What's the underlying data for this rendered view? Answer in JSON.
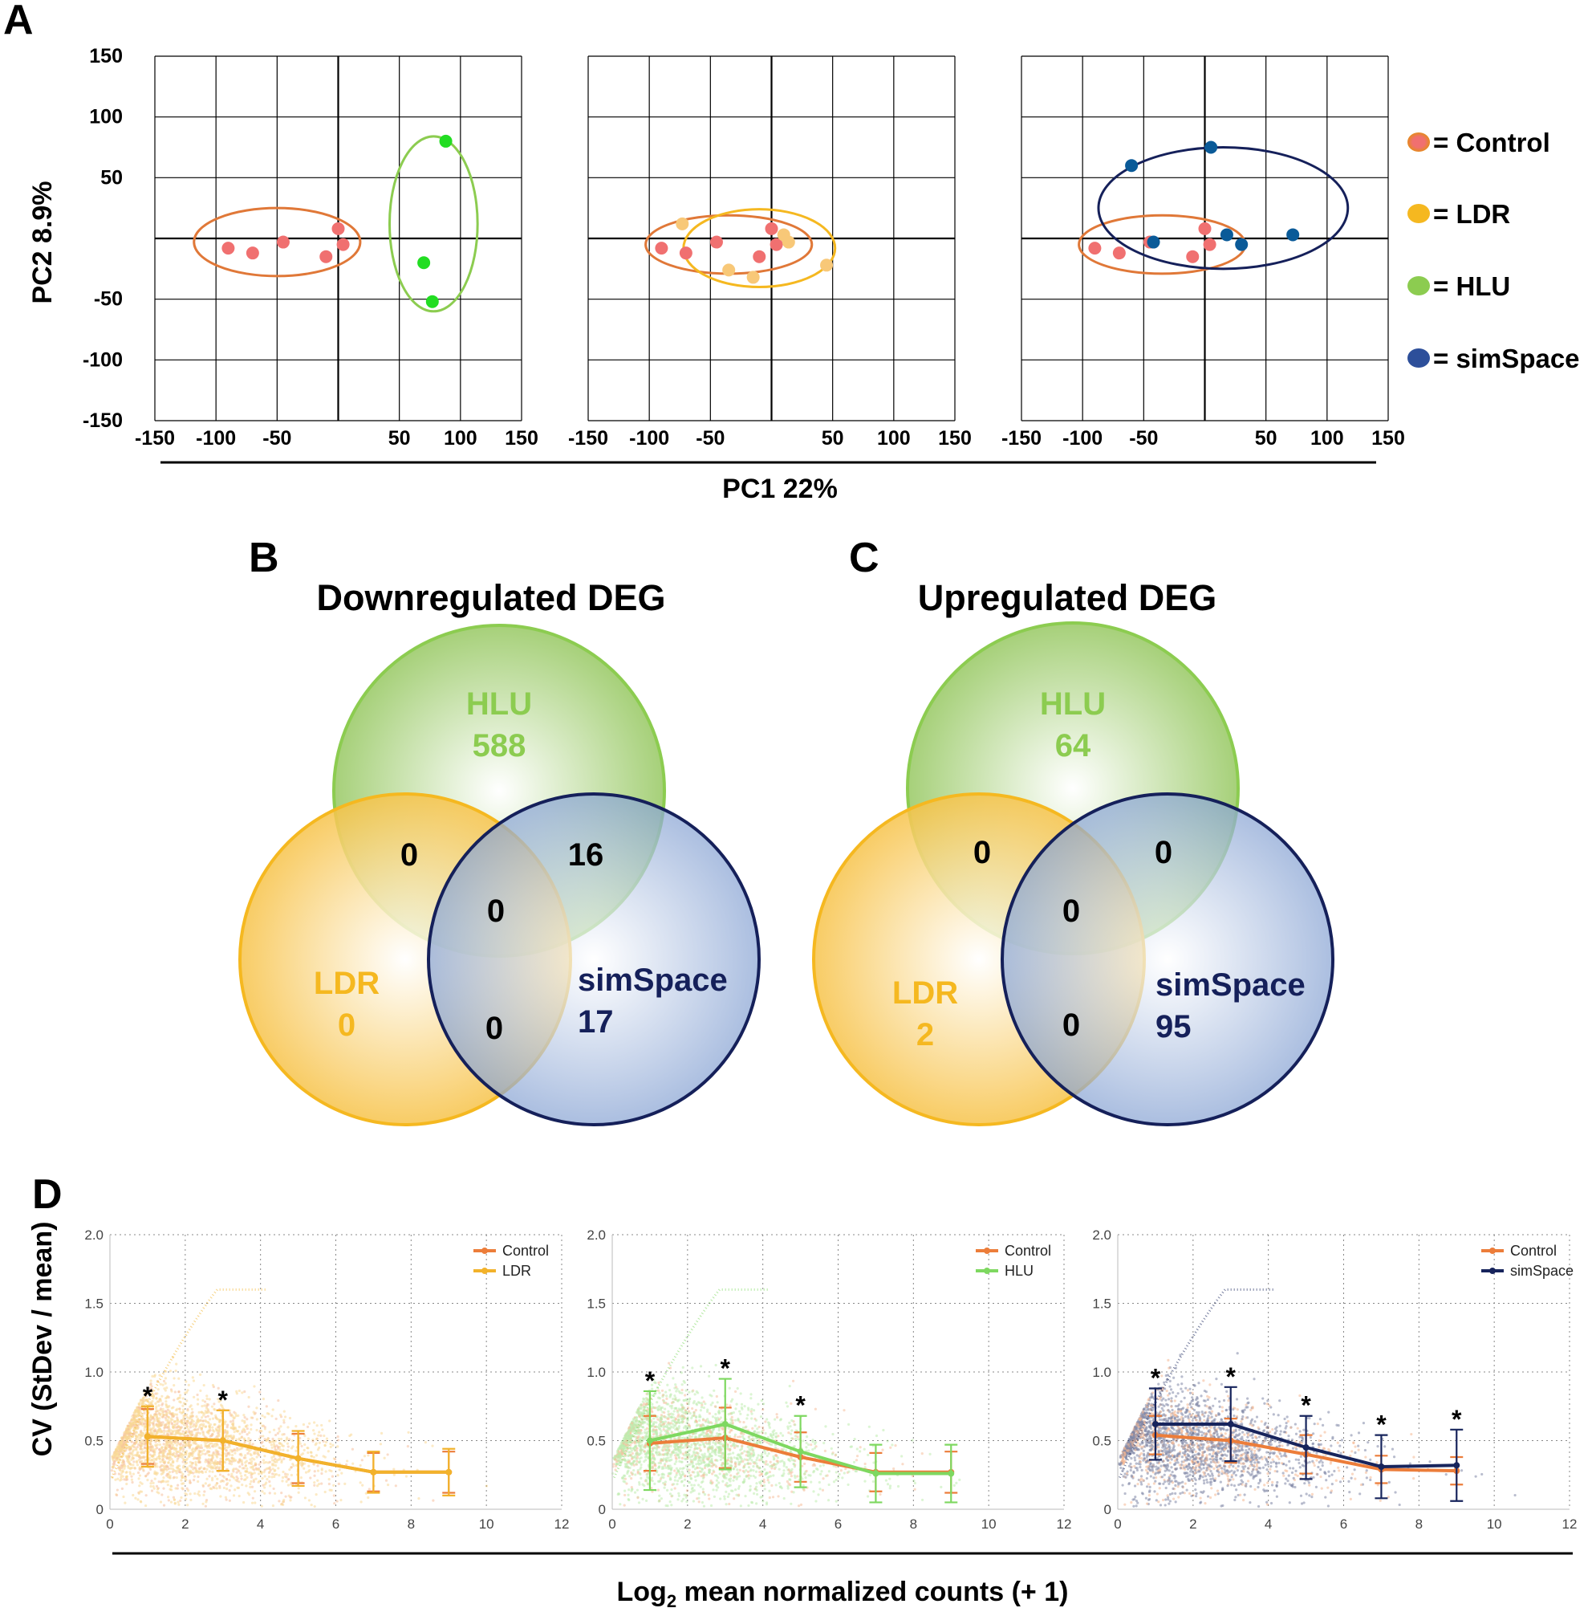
{
  "colors": {
    "control_point": "#f07070",
    "control_ellipse": "#e07838",
    "ldr": "#f5b820",
    "ldr_point": "#f8c878",
    "hlu": "#8ccc50",
    "hlu_point": "#22dd22",
    "simspace": "#15205a",
    "simspace_point": "#0a5a98",
    "control_line": "#ec7d3a",
    "d_ldr": "#f2b22b",
    "d_hlu": "#7ed860",
    "d_simspace": "#17245c"
  },
  "panel_labels": {
    "a": "A",
    "b": "B",
    "c": "C",
    "d": "D"
  },
  "chart_data": [
    {
      "type": "scatter",
      "panel": "A",
      "title": "",
      "xlabel": "PC1 22%",
      "ylabel": "PC2 8.9%",
      "xlim": [
        -150,
        150
      ],
      "ylim": [
        -150,
        150
      ],
      "xtick_labels": [
        "-150",
        "-100",
        "-50",
        "50",
        "100",
        "150"
      ],
      "ytick_labels": [
        "150",
        "100",
        "50",
        "-50",
        "-100",
        "-150"
      ],
      "legend": [
        {
          "label": "= Control",
          "color": "#f07070"
        },
        {
          "label": "= LDR",
          "color": "#f5b820"
        },
        {
          "label": "= HLU",
          "color": "#8ccc50"
        },
        {
          "label": "= simSpace",
          "color": "#2d4f9a"
        }
      ],
      "subplots": [
        {
          "series": [
            {
              "name": "Control",
              "color_key": "control_point",
              "points": [
                [
                  -90,
                  -8
                ],
                [
                  -70,
                  -12
                ],
                [
                  -45,
                  -3
                ],
                [
                  -10,
                  -15
                ],
                [
                  0,
                  8
                ],
                [
                  4,
                  -5
                ]
              ]
            },
            {
              "name": "HLU",
              "color_key": "hlu_point",
              "points": [
                [
                  88,
                  80
                ],
                [
                  70,
                  -20
                ],
                [
                  77,
                  -52
                ]
              ]
            }
          ],
          "ellipses": [
            {
              "name": "Control",
              "color_key": "control_ellipse",
              "center": [
                -50,
                -3
              ],
              "rx": 68,
              "ry": 28
            },
            {
              "name": "HLU",
              "color_key": "hlu",
              "center": [
                78,
                12
              ],
              "rx": 36,
              "ry": 72
            }
          ]
        },
        {
          "series": [
            {
              "name": "Control",
              "color_key": "control_point",
              "points": [
                [
                  -90,
                  -8
                ],
                [
                  -70,
                  -12
                ],
                [
                  -45,
                  -3
                ],
                [
                  -10,
                  -15
                ],
                [
                  0,
                  8
                ],
                [
                  4,
                  -5
                ]
              ]
            },
            {
              "name": "LDR",
              "color_key": "ldr_point",
              "points": [
                [
                  -73,
                  12
                ],
                [
                  -35,
                  -26
                ],
                [
                  -15,
                  -32
                ],
                [
                  10,
                  3
                ],
                [
                  14,
                  -3
                ],
                [
                  45,
                  -22
                ]
              ]
            }
          ],
          "ellipses": [
            {
              "name": "Control",
              "color_key": "control_ellipse",
              "center": [
                -35,
                -5
              ],
              "rx": 68,
              "ry": 24
            },
            {
              "name": "LDR",
              "color_key": "ldr",
              "center": [
                -10,
                -8
              ],
              "rx": 62,
              "ry": 32
            }
          ]
        },
        {
          "series": [
            {
              "name": "Control",
              "color_key": "control_point",
              "points": [
                [
                  -90,
                  -8
                ],
                [
                  -70,
                  -12
                ],
                [
                  -45,
                  -3
                ],
                [
                  -10,
                  -15
                ],
                [
                  0,
                  8
                ],
                [
                  4,
                  -5
                ]
              ]
            },
            {
              "name": "simSpace",
              "color_key": "simspace_point",
              "points": [
                [
                  -60,
                  60
                ],
                [
                  5,
                  75
                ],
                [
                  -42,
                  -3
                ],
                [
                  18,
                  3
                ],
                [
                  30,
                  -5
                ],
                [
                  72,
                  3
                ]
              ]
            }
          ],
          "ellipses": [
            {
              "name": "Control",
              "color_key": "control_ellipse",
              "center": [
                -35,
                -5
              ],
              "rx": 68,
              "ry": 24
            },
            {
              "name": "simSpace",
              "color_key": "simspace",
              "center": [
                15,
                25
              ],
              "rx": 102,
              "ry": 50
            }
          ]
        }
      ]
    },
    {
      "type": "venn",
      "panel": "B",
      "title": "Downregulated DEG",
      "sets": [
        {
          "name": "HLU",
          "count": "588",
          "color_key": "hlu"
        },
        {
          "name": "LDR",
          "count": "0",
          "color_key": "ldr"
        },
        {
          "name": "simSpace",
          "count": "17",
          "color_key": "simspace"
        }
      ],
      "overlaps": {
        "HLU_LDR": "0",
        "HLU_simSpace": "16",
        "LDR_simSpace": "0",
        "all": "0"
      }
    },
    {
      "type": "venn",
      "panel": "C",
      "title": "Upregulated DEG",
      "sets": [
        {
          "name": "HLU",
          "count": "64",
          "color_key": "hlu"
        },
        {
          "name": "LDR",
          "count": "2",
          "color_key": "ldr"
        },
        {
          "name": "simSpace",
          "count": "95",
          "color_key": "simspace"
        }
      ],
      "overlaps": {
        "HLU_LDR": "0",
        "HLU_simSpace": "0",
        "LDR_simSpace": "0",
        "all": "0"
      }
    },
    {
      "type": "line",
      "panel": "D",
      "xlabel_main": "Log",
      "xlabel_sub": "2",
      "xlabel_rest": " mean normalized counts (+ 1)",
      "ylabel": "CV (StDev / mean)",
      "xlim": [
        0,
        12
      ],
      "ylim": [
        0,
        2.0
      ],
      "xtick_labels": [
        "0",
        "2",
        "4",
        "6",
        "8",
        "10",
        "12"
      ],
      "ytick_labels": [
        "0",
        "0.5",
        "1.0",
        "1.5",
        "2.0"
      ],
      "significance_marker": "*",
      "x": [
        1,
        3,
        5,
        7,
        9
      ],
      "subplots": [
        {
          "series": [
            {
              "name": "Control",
              "color_key": "control_line",
              "values": [
                0.53,
                0.5,
                0.37,
                0.27,
                0.27
              ],
              "err": [
                0.2,
                0.22,
                0.18,
                0.14,
                0.15
              ]
            },
            {
              "name": "LDR",
              "color_key": "d_ldr",
              "values": [
                0.53,
                0.5,
                0.37,
                0.27,
                0.27
              ],
              "err": [
                0.22,
                0.22,
                0.2,
                0.15,
                0.17
              ]
            }
          ],
          "stars_x": [
            1,
            3
          ],
          "cloud_key": "d_ldr"
        },
        {
          "series": [
            {
              "name": "Control",
              "color_key": "control_line",
              "values": [
                0.48,
                0.52,
                0.38,
                0.27,
                0.27
              ],
              "err": [
                0.2,
                0.22,
                0.18,
                0.14,
                0.15
              ]
            },
            {
              "name": "HLU",
              "color_key": "d_hlu",
              "values": [
                0.5,
                0.62,
                0.42,
                0.26,
                0.26
              ],
              "err": [
                0.36,
                0.33,
                0.26,
                0.21,
                0.21
              ]
            }
          ],
          "stars_x": [
            1,
            3,
            5
          ],
          "cloud_key": "d_hlu"
        },
        {
          "series": [
            {
              "name": "Control",
              "color_key": "control_line",
              "values": [
                0.54,
                0.5,
                0.4,
                0.29,
                0.28
              ],
              "err": [
                0.14,
                0.16,
                0.14,
                0.1,
                0.1
              ]
            },
            {
              "name": "simSpace",
              "color_key": "d_simspace",
              "values": [
                0.62,
                0.62,
                0.45,
                0.31,
                0.32
              ],
              "err": [
                0.26,
                0.27,
                0.23,
                0.23,
                0.26
              ]
            }
          ],
          "stars_x": [
            1,
            3,
            5,
            7,
            9
          ],
          "cloud_key": "d_simspace"
        }
      ]
    }
  ]
}
